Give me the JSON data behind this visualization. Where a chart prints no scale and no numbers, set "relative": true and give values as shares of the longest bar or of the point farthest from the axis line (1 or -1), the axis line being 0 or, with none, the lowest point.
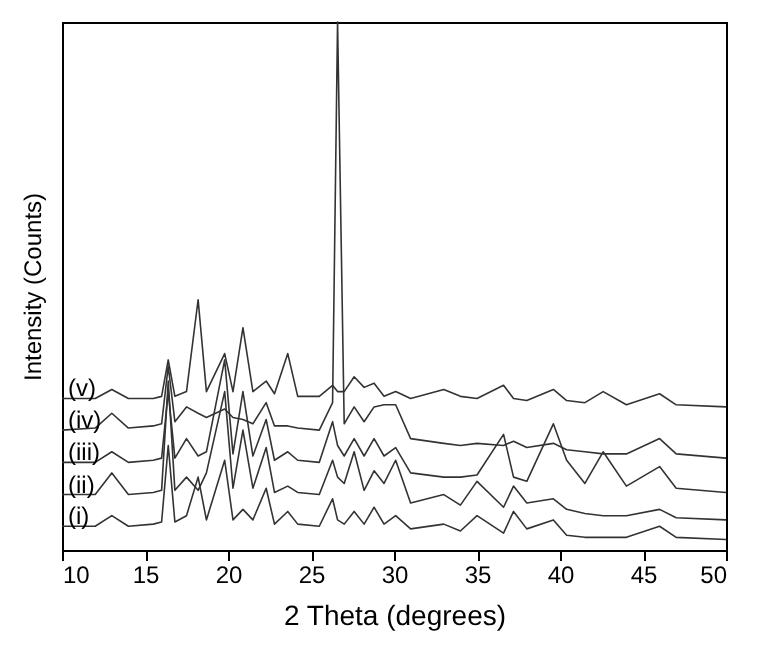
{
  "chart_data": {
    "type": "line",
    "xlabel": "2 Theta (degrees)",
    "ylabel": "Intensity (Counts)",
    "relative": true,
    "legend": false,
    "xlim": [
      10,
      50
    ],
    "xticks": [
      10,
      15,
      20,
      25,
      30,
      35,
      40,
      45,
      50
    ],
    "x": [
      10,
      12,
      13,
      14,
      15.5,
      16.0,
      16.4,
      16.8,
      17.5,
      18.2,
      18.7,
      19.8,
      20.3,
      20.9,
      21.5,
      22.3,
      22.8,
      23.6,
      24.2,
      25.5,
      26.3,
      26.6,
      27.0,
      27.6,
      28.2,
      28.8,
      29.4,
      30.1,
      31,
      33,
      34,
      35,
      36.6,
      37.2,
      38,
      39.6,
      40.4,
      41.5,
      42.6,
      44,
      46,
      47,
      50
    ],
    "series": [
      {
        "name": "(v)",
        "color": "#333333",
        "values": [
          0.287,
          0.287,
          0.304,
          0.287,
          0.287,
          0.291,
          0.36,
          0.291,
          0.3,
          0.474,
          0.3,
          0.372,
          0.3,
          0.421,
          0.3,
          0.32,
          0.296,
          0.372,
          0.291,
          0.291,
          0.312,
          0.3,
          0.3,
          0.328,
          0.308,
          0.316,
          0.291,
          0.3,
          0.287,
          0.304,
          0.291,
          0.287,
          0.312,
          0.287,
          0.283,
          0.304,
          0.283,
          0.279,
          0.3,
          0.275,
          0.296,
          0.275,
          0.271
        ]
      },
      {
        "name": "(iv)",
        "color": "#333333",
        "values": [
          0.227,
          0.231,
          0.259,
          0.231,
          0.235,
          0.239,
          0.348,
          0.243,
          0.271,
          0.259,
          0.251,
          0.267,
          0.251,
          0.247,
          0.239,
          0.279,
          0.235,
          0.235,
          0.231,
          0.227,
          0.279,
          1.0,
          0.239,
          0.271,
          0.243,
          0.271,
          0.275,
          0.275,
          0.211,
          0.202,
          0.198,
          0.202,
          0.198,
          0.206,
          0.194,
          0.202,
          0.19,
          0.186,
          0.182,
          0.182,
          0.211,
          0.182,
          0.174
        ]
      },
      {
        "name": "(iii)",
        "color": "#333333",
        "values": [
          0.166,
          0.166,
          0.186,
          0.166,
          0.17,
          0.174,
          0.3,
          0.174,
          0.211,
          0.178,
          0.186,
          0.36,
          0.182,
          0.3,
          0.178,
          0.247,
          0.17,
          0.186,
          0.17,
          0.166,
          0.243,
          0.198,
          0.178,
          0.211,
          0.178,
          0.211,
          0.178,
          0.194,
          0.146,
          0.138,
          0.138,
          0.142,
          0.219,
          0.138,
          0.13,
          0.239,
          0.17,
          0.126,
          0.186,
          0.121,
          0.158,
          0.117,
          0.109
        ]
      },
      {
        "name": "(ii)",
        "color": "#333333",
        "values": [
          0.105,
          0.105,
          0.146,
          0.105,
          0.109,
          0.113,
          0.32,
          0.113,
          0.138,
          0.113,
          0.146,
          0.3,
          0.117,
          0.227,
          0.117,
          0.194,
          0.109,
          0.121,
          0.109,
          0.105,
          0.17,
          0.138,
          0.126,
          0.186,
          0.113,
          0.15,
          0.126,
          0.17,
          0.089,
          0.105,
          0.085,
          0.13,
          0.081,
          0.121,
          0.089,
          0.097,
          0.077,
          0.069,
          0.065,
          0.065,
          0.077,
          0.061,
          0.057
        ]
      },
      {
        "name": "(i)",
        "color": "#333333",
        "values": [
          0.045,
          0.045,
          0.065,
          0.045,
          0.049,
          0.053,
          0.198,
          0.053,
          0.065,
          0.138,
          0.057,
          0.17,
          0.057,
          0.077,
          0.057,
          0.117,
          0.049,
          0.073,
          0.049,
          0.045,
          0.097,
          0.057,
          0.049,
          0.073,
          0.049,
          0.081,
          0.049,
          0.065,
          0.04,
          0.049,
          0.036,
          0.065,
          0.032,
          0.073,
          0.04,
          0.057,
          0.028,
          0.024,
          0.024,
          0.024,
          0.045,
          0.024,
          0.02
        ]
      }
    ]
  }
}
